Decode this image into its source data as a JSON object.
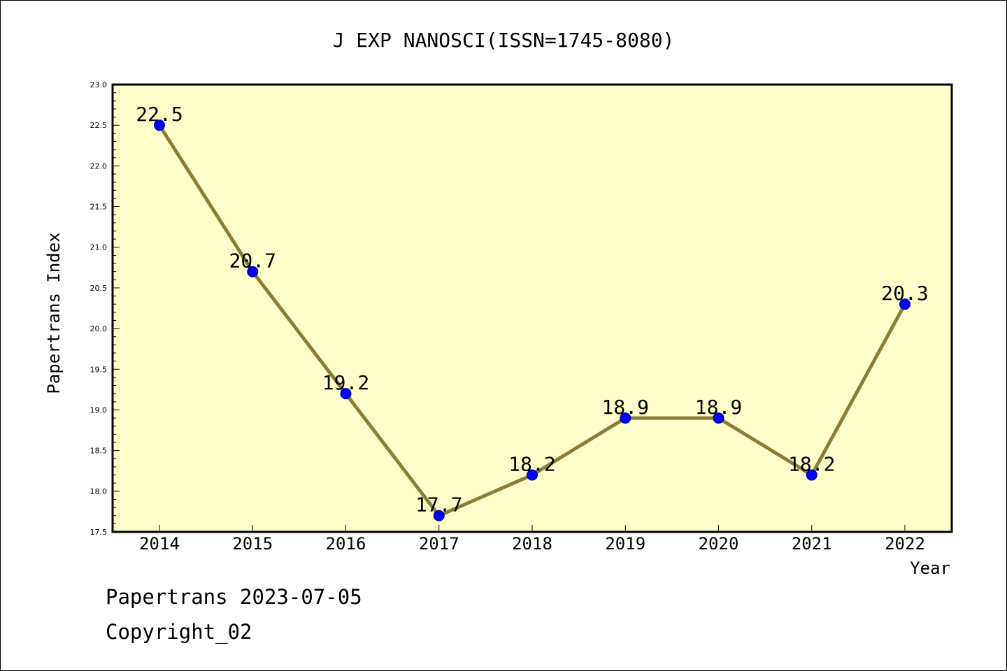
{
  "chart_data": {
    "type": "line",
    "title": "J EXP NANOSCI(ISSN=1745-8080)",
    "xlabel": "Year",
    "ylabel": "Papertrans Index",
    "categories": [
      "2014",
      "2015",
      "2016",
      "2017",
      "2018",
      "2019",
      "2020",
      "2021",
      "2022"
    ],
    "values": [
      22.5,
      20.7,
      19.2,
      17.7,
      18.2,
      18.9,
      18.9,
      18.2,
      20.3
    ],
    "data_labels": [
      "22.5",
      "20.7",
      "19.2",
      "17.7",
      "18.2",
      "18.9",
      "18.9",
      "18.2",
      "20.3"
    ],
    "ylim": [
      17.5,
      23.0
    ],
    "yticks": [
      "17.5",
      "18.0",
      "18.5",
      "19.0",
      "19.5",
      "20.0",
      "20.5",
      "21.0",
      "21.5",
      "22.0",
      "22.5",
      "23.0"
    ],
    "grid": false,
    "colors": {
      "plot_background": "#ffffcc",
      "line": "#8b7d36",
      "marker": "#0000ff"
    }
  },
  "footer": {
    "date_line": "Papertrans 2023-07-05",
    "copyright": "Copyright_02"
  }
}
